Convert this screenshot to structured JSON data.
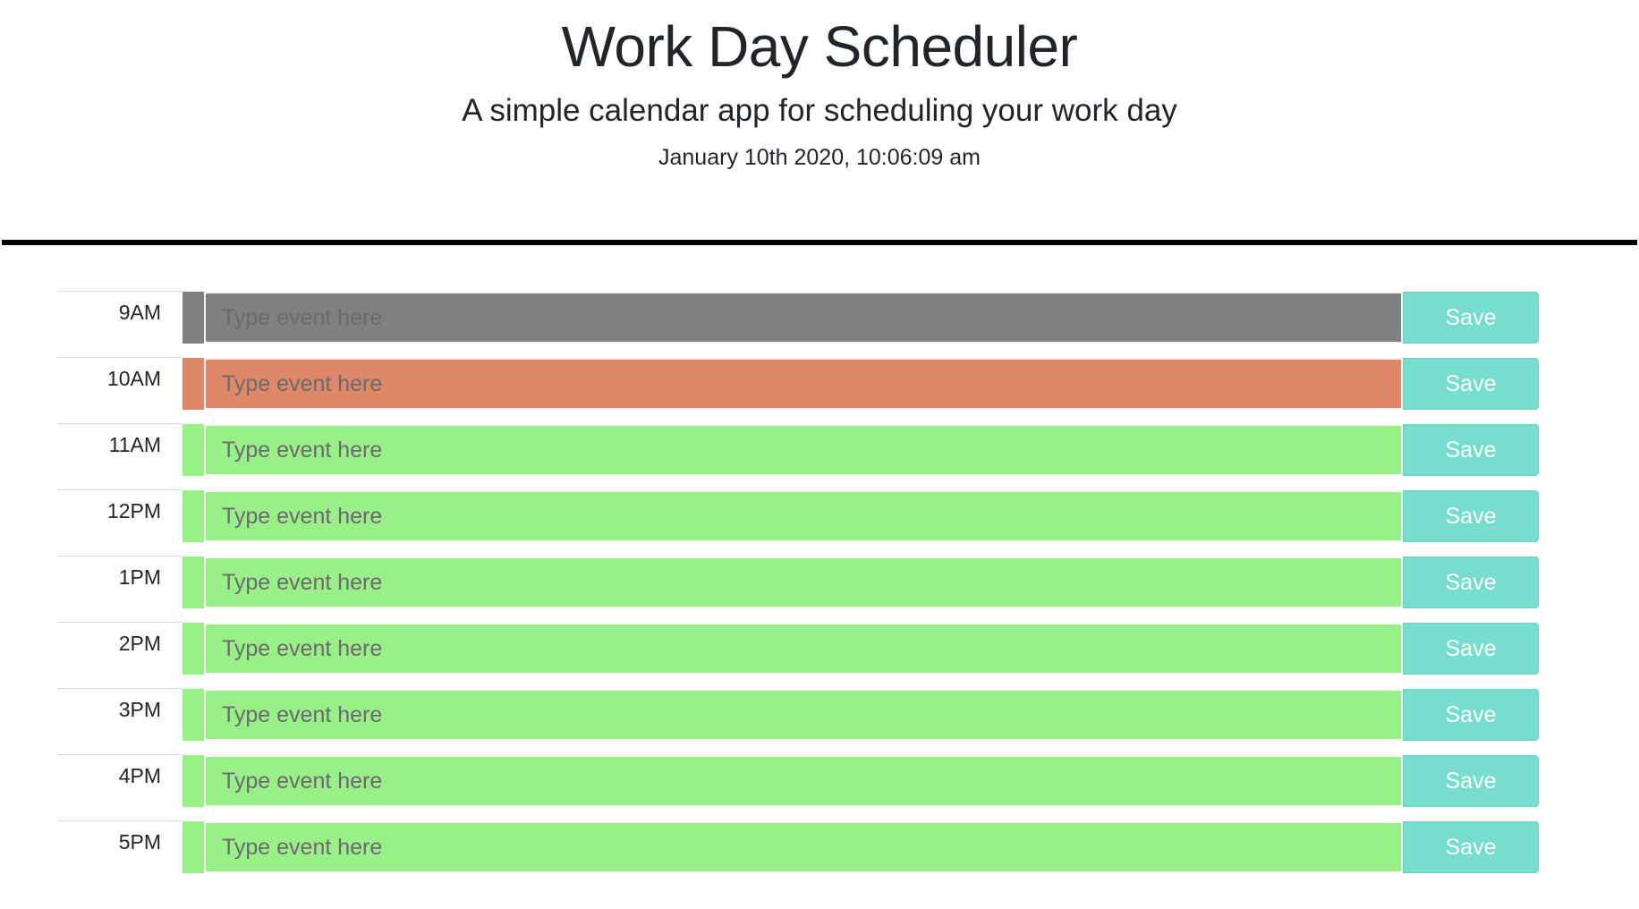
{
  "header": {
    "title": "Work Day Scheduler",
    "subtitle": "A simple calendar app for scheduling your work day",
    "current_day": "January 10th 2020, 10:06:09 am"
  },
  "colors": {
    "past": "#808080",
    "present": "#de8769",
    "future": "#99ef88",
    "save": "#77ddcc"
  },
  "schedule": [
    {
      "hour": "9AM",
      "state": "past",
      "placeholder": "Type event here",
      "value": "",
      "save_label": "Save"
    },
    {
      "hour": "10AM",
      "state": "present",
      "placeholder": "Type event here",
      "value": "",
      "save_label": "Save"
    },
    {
      "hour": "11AM",
      "state": "future",
      "placeholder": "Type event here",
      "value": "",
      "save_label": "Save"
    },
    {
      "hour": "12PM",
      "state": "future",
      "placeholder": "Type event here",
      "value": "",
      "save_label": "Save"
    },
    {
      "hour": "1PM",
      "state": "future",
      "placeholder": "Type event here",
      "value": "",
      "save_label": "Save"
    },
    {
      "hour": "2PM",
      "state": "future",
      "placeholder": "Type event here",
      "value": "",
      "save_label": "Save"
    },
    {
      "hour": "3PM",
      "state": "future",
      "placeholder": "Type event here",
      "value": "",
      "save_label": "Save"
    },
    {
      "hour": "4PM",
      "state": "future",
      "placeholder": "Type event here",
      "value": "",
      "save_label": "Save"
    },
    {
      "hour": "5PM",
      "state": "future",
      "placeholder": "Type event here",
      "value": "",
      "save_label": "Save"
    }
  ]
}
